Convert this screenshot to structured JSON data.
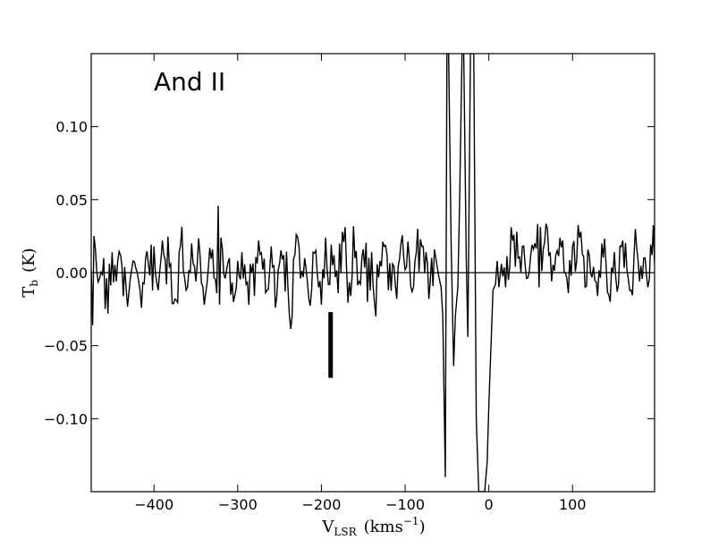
{
  "chart_data": {
    "type": "line",
    "title": "",
    "annotation": "And II",
    "xlabel": {
      "main": "V",
      "sub": "LSR",
      "units": "(kms",
      "sup": "−1",
      "close": ")"
    },
    "ylabel": {
      "main": "T",
      "sub": "b",
      "units": "(K)"
    },
    "xlim": [
      -475,
      198
    ],
    "ylim": [
      -0.15,
      0.15
    ],
    "xticks": [
      -400,
      -300,
      -200,
      -100,
      0,
      100
    ],
    "xtick_labels": [
      "−400",
      "−300",
      "−200",
      "−100",
      "0",
      "100"
    ],
    "yticks": [
      -0.1,
      -0.05,
      0.0,
      0.05,
      0.1
    ],
    "ytick_labels": [
      "−0.10",
      "−0.05",
      "0.00",
      "0.05",
      "0.10"
    ],
    "baseline_y": 0.0,
    "marker": {
      "x": -189,
      "y_from": -0.027,
      "y_to": -0.072
    },
    "noise_sd": 0.011,
    "series": [
      {
        "x": [
          -475,
          -470,
          -465,
          -460,
          -455,
          -450,
          -445,
          -440,
          -435,
          -430,
          -425,
          -420,
          -415,
          -410,
          -405,
          -400,
          -395,
          -390,
          -385,
          -380,
          -375,
          -370,
          -365,
          -360,
          -355,
          -350,
          -345,
          -340,
          -335,
          -330,
          -325,
          -320,
          -315,
          -310,
          -305,
          -300,
          -295,
          -290,
          -285,
          -280,
          -275,
          -270,
          -265,
          -260,
          -255,
          -250,
          -245,
          -240,
          -235,
          -230,
          -225,
          -220,
          -215,
          -210,
          -205,
          -200,
          -195,
          -190,
          -185,
          -180,
          -175,
          -170,
          -165,
          -160,
          -155,
          -150,
          -145,
          -140,
          -135,
          -130,
          -125,
          -120,
          -115,
          -110,
          -105,
          -100,
          -95,
          -90,
          -85,
          -80,
          -75,
          -70,
          -65,
          -60,
          -57,
          -55,
          -52,
          -50,
          -48,
          -45,
          -42,
          -40,
          -37,
          -35,
          -32,
          -30,
          -27,
          -25,
          -22,
          -20,
          -18,
          -15,
          -12,
          -10,
          -7,
          -5,
          -2,
          0,
          3,
          5,
          8,
          10,
          12,
          15,
          20,
          25,
          30,
          35,
          40,
          45,
          50,
          55,
          60,
          65,
          70,
          75,
          80,
          85,
          90,
          95,
          100,
          105,
          110,
          115,
          120,
          125,
          130,
          135,
          140,
          145,
          150,
          155,
          160,
          165,
          170,
          175,
          180,
          185,
          190,
          195,
          198
        ],
        "y": [
          0.002,
          0.016,
          -0.004,
          0.01,
          -0.028,
          0.014,
          -0.006,
          0.012,
          0.004,
          -0.014,
          0.008,
          0.0,
          -0.024,
          0.01,
          -0.002,
          0.018,
          -0.012,
          0.022,
          -0.008,
          0.006,
          -0.018,
          0.014,
          0.002,
          -0.01,
          0.02,
          -0.006,
          0.012,
          -0.022,
          0.004,
          0.016,
          -0.014,
          0.024,
          -0.004,
          0.01,
          -0.02,
          0.008,
          0.014,
          -0.008,
          0.006,
          -0.016,
          0.022,
          0.002,
          -0.012,
          0.018,
          -0.024,
          0.006,
          0.012,
          -0.01,
          -0.03,
          0.026,
          -0.004,
          0.01,
          -0.018,
          0.014,
          0.0,
          -0.022,
          0.024,
          -0.008,
          0.012,
          -0.014,
          0.028,
          0.004,
          -0.016,
          0.01,
          -0.006,
          0.016,
          -0.02,
          0.014,
          -0.03,
          0.008,
          0.018,
          -0.012,
          0.006,
          -0.018,
          0.02,
          0.002,
          0.01,
          -0.01,
          0.03,
          0.018,
          0.014,
          -0.006,
          0.016,
          -0.002,
          -0.01,
          -0.03,
          -0.14,
          0.15,
          0.15,
          0.02,
          -0.064,
          -0.03,
          -0.01,
          0.046,
          0.15,
          0.15,
          0.01,
          -0.044,
          0.15,
          0.15,
          0.15,
          -0.1,
          -0.15,
          -0.15,
          -0.15,
          -0.15,
          -0.13,
          -0.09,
          -0.043,
          -0.012,
          -0.008,
          0.008,
          -0.01,
          0.006,
          -0.01,
          0.004,
          0.026,
          0.01,
          0.018,
          -0.004,
          0.012,
          0.02,
          -0.01,
          0.016,
          0.03,
          -0.006,
          0.012,
          0.024,
          0.0,
          -0.014,
          0.018,
          0.008,
          0.028,
          -0.01,
          0.012,
          0.004,
          -0.016,
          0.02,
          0.006,
          -0.02,
          0.014,
          -0.008,
          0.022,
          0.002,
          -0.012,
          0.03,
          -0.006,
          0.01,
          -0.01,
          0.012,
          0.006
        ]
      }
    ],
    "grid": false,
    "legend": "none"
  }
}
